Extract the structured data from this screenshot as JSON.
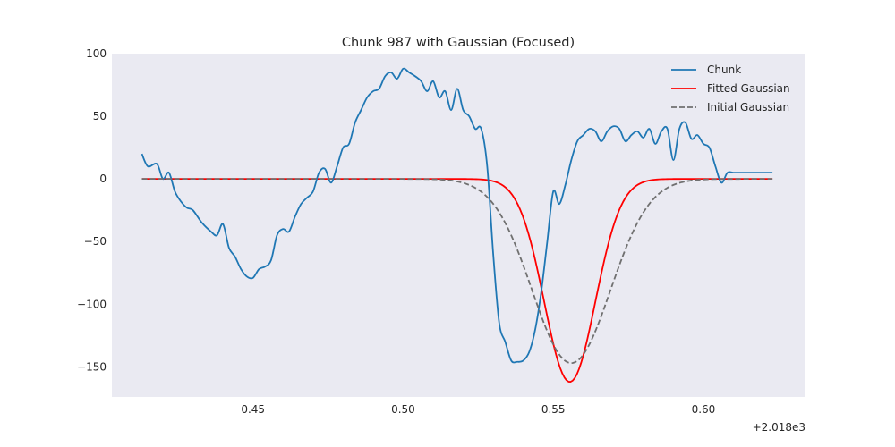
{
  "chart_data": {
    "type": "line",
    "title": "Chunk 987 with Gaussian (Focused)",
    "xlabel": "",
    "ylabel": "",
    "x_offset_label": "+2.018e3",
    "xlim": [
      0.403,
      0.634
    ],
    "ylim": [
      -174,
      100
    ],
    "x_ticks": [
      0.45,
      0.5,
      0.55,
      0.6
    ],
    "x_tick_labels": [
      "0.45",
      "0.50",
      "0.55",
      "0.60"
    ],
    "y_ticks": [
      100,
      50,
      0,
      -50,
      -100,
      -150
    ],
    "y_tick_labels": [
      "100",
      "50",
      "0",
      "−50",
      "−100",
      "−150"
    ],
    "grid": false,
    "legend_position": "top-right",
    "colors": {
      "chunk": "#1f77b4",
      "fitted": "#ff0000",
      "initial": "#707070",
      "background": "#eaeaf2"
    },
    "series": [
      {
        "name": "Chunk",
        "style": "solid",
        "x": [
          0.413,
          0.415,
          0.418,
          0.42,
          0.422,
          0.424,
          0.426,
          0.428,
          0.43,
          0.433,
          0.436,
          0.438,
          0.44,
          0.442,
          0.444,
          0.446,
          0.448,
          0.45,
          0.452,
          0.454,
          0.456,
          0.458,
          0.46,
          0.462,
          0.464,
          0.466,
          0.468,
          0.47,
          0.472,
          0.474,
          0.476,
          0.478,
          0.48,
          0.482,
          0.484,
          0.486,
          0.488,
          0.49,
          0.492,
          0.494,
          0.496,
          0.498,
          0.5,
          0.502,
          0.504,
          0.506,
          0.508,
          0.51,
          0.512,
          0.514,
          0.516,
          0.518,
          0.52,
          0.522,
          0.524,
          0.526,
          0.528,
          0.53,
          0.532,
          0.534,
          0.536,
          0.538,
          0.54,
          0.542,
          0.544,
          0.546,
          0.548,
          0.55,
          0.552,
          0.554,
          0.556,
          0.558,
          0.56,
          0.562,
          0.564,
          0.566,
          0.568,
          0.57,
          0.572,
          0.574,
          0.576,
          0.578,
          0.58,
          0.582,
          0.584,
          0.586,
          0.588,
          0.59,
          0.592,
          0.594,
          0.596,
          0.598,
          0.6,
          0.602,
          0.604,
          0.606,
          0.608,
          0.61,
          0.612,
          0.614,
          0.616,
          0.618,
          0.62,
          0.622,
          0.623
        ],
        "y": [
          20,
          10,
          12,
          0,
          5,
          -10,
          -18,
          -23,
          -25,
          -35,
          -42,
          -45,
          -36,
          -55,
          -62,
          -72,
          -78,
          -79,
          -72,
          -70,
          -65,
          -45,
          -40,
          -42,
          -30,
          -20,
          -15,
          -10,
          5,
          8,
          -3,
          10,
          25,
          28,
          45,
          55,
          65,
          70,
          72,
          82,
          85,
          80,
          88,
          85,
          82,
          78,
          70,
          78,
          65,
          70,
          55,
          72,
          55,
          50,
          40,
          40,
          10,
          -60,
          -115,
          -130,
          -145,
          -146,
          -145,
          -138,
          -120,
          -90,
          -50,
          -10,
          -20,
          -5,
          15,
          30,
          35,
          40,
          38,
          30,
          38,
          42,
          40,
          30,
          35,
          38,
          33,
          40,
          28,
          38,
          40,
          15,
          40,
          45,
          32,
          35,
          28,
          25,
          10,
          -3,
          5,
          5,
          5,
          5,
          5,
          5,
          5,
          5,
          5
        ],
        "legend_label": "Chunk"
      },
      {
        "name": "Fitted Gaussian",
        "style": "solid",
        "gaussian": {
          "amplitude": -162,
          "mean": 0.5555,
          "sigma": 0.0085,
          "offset": 0
        },
        "x_range": [
          0.413,
          0.623
        ],
        "legend_label": "Fitted Gaussian"
      },
      {
        "name": "Initial Gaussian",
        "style": "dashed",
        "gaussian": {
          "amplitude": -147,
          "mean": 0.556,
          "sigma": 0.013,
          "offset": 0
        },
        "x_range": [
          0.413,
          0.623
        ],
        "legend_label": "Initial Gaussian"
      }
    ]
  }
}
